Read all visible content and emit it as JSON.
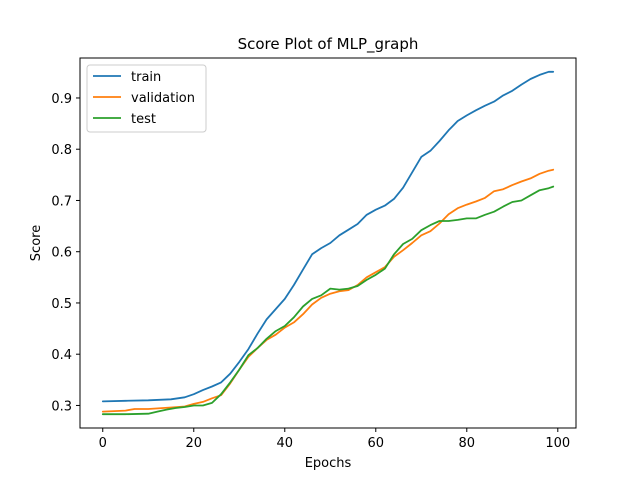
{
  "chart_data": {
    "type": "line",
    "title": "Score Plot of MLP_graph",
    "xlabel": "Epochs",
    "ylabel": "Score",
    "xlim": [
      -5,
      104
    ],
    "ylim": [
      0.256,
      0.978
    ],
    "xticks": [
      0,
      20,
      40,
      60,
      80,
      100
    ],
    "yticks": [
      0.3,
      0.4,
      0.5,
      0.6,
      0.7,
      0.8,
      0.9
    ],
    "grid": false,
    "legend_position": "top-left",
    "series": [
      {
        "name": "train",
        "color": "#1f77b4",
        "x": [
          0,
          5,
          10,
          15,
          18,
          20,
          22,
          24,
          26,
          28,
          30,
          32,
          34,
          36,
          38,
          40,
          42,
          44,
          46,
          48,
          50,
          52,
          54,
          56,
          58,
          60,
          62,
          64,
          66,
          68,
          70,
          72,
          74,
          76,
          78,
          80,
          82,
          84,
          86,
          88,
          90,
          92,
          94,
          96,
          98,
          99
        ],
        "values": [
          0.308,
          0.309,
          0.31,
          0.312,
          0.316,
          0.322,
          0.33,
          0.337,
          0.345,
          0.362,
          0.385,
          0.41,
          0.44,
          0.468,
          0.488,
          0.508,
          0.535,
          0.565,
          0.595,
          0.607,
          0.617,
          0.632,
          0.643,
          0.654,
          0.672,
          0.682,
          0.69,
          0.703,
          0.725,
          0.755,
          0.785,
          0.797,
          0.816,
          0.837,
          0.855,
          0.866,
          0.876,
          0.885,
          0.893,
          0.905,
          0.914,
          0.926,
          0.937,
          0.945,
          0.951,
          0.951
        ]
      },
      {
        "name": "validation",
        "color": "#ff7f0e",
        "x": [
          0,
          5,
          7,
          10,
          15,
          18,
          20,
          22,
          24,
          26,
          28,
          30,
          32,
          34,
          36,
          38,
          40,
          42,
          44,
          46,
          48,
          50,
          52,
          54,
          56,
          58,
          60,
          62,
          64,
          66,
          68,
          70,
          72,
          74,
          76,
          78,
          80,
          82,
          84,
          86,
          88,
          90,
          92,
          94,
          96,
          98,
          99
        ],
        "values": [
          0.288,
          0.29,
          0.293,
          0.293,
          0.296,
          0.298,
          0.303,
          0.307,
          0.314,
          0.32,
          0.343,
          0.37,
          0.395,
          0.412,
          0.428,
          0.438,
          0.452,
          0.462,
          0.478,
          0.497,
          0.51,
          0.518,
          0.523,
          0.525,
          0.535,
          0.55,
          0.56,
          0.57,
          0.59,
          0.603,
          0.617,
          0.632,
          0.64,
          0.655,
          0.673,
          0.685,
          0.692,
          0.698,
          0.705,
          0.718,
          0.722,
          0.73,
          0.737,
          0.743,
          0.752,
          0.758,
          0.76
        ]
      },
      {
        "name": "test",
        "color": "#2ca02c",
        "x": [
          0,
          5,
          10,
          12,
          14,
          16,
          18,
          20,
          22,
          24,
          26,
          28,
          30,
          32,
          34,
          36,
          38,
          40,
          42,
          44,
          46,
          48,
          50,
          52,
          54,
          56,
          58,
          60,
          62,
          64,
          66,
          68,
          70,
          72,
          74,
          76,
          78,
          80,
          82,
          84,
          86,
          88,
          90,
          92,
          94,
          96,
          98,
          99
        ],
        "values": [
          0.283,
          0.283,
          0.284,
          0.288,
          0.292,
          0.295,
          0.297,
          0.3,
          0.3,
          0.305,
          0.322,
          0.345,
          0.37,
          0.398,
          0.412,
          0.43,
          0.445,
          0.455,
          0.472,
          0.493,
          0.508,
          0.515,
          0.528,
          0.526,
          0.528,
          0.533,
          0.545,
          0.555,
          0.567,
          0.595,
          0.615,
          0.625,
          0.642,
          0.652,
          0.66,
          0.66,
          0.662,
          0.665,
          0.665,
          0.672,
          0.678,
          0.688,
          0.697,
          0.7,
          0.71,
          0.72,
          0.724,
          0.727
        ]
      }
    ]
  }
}
